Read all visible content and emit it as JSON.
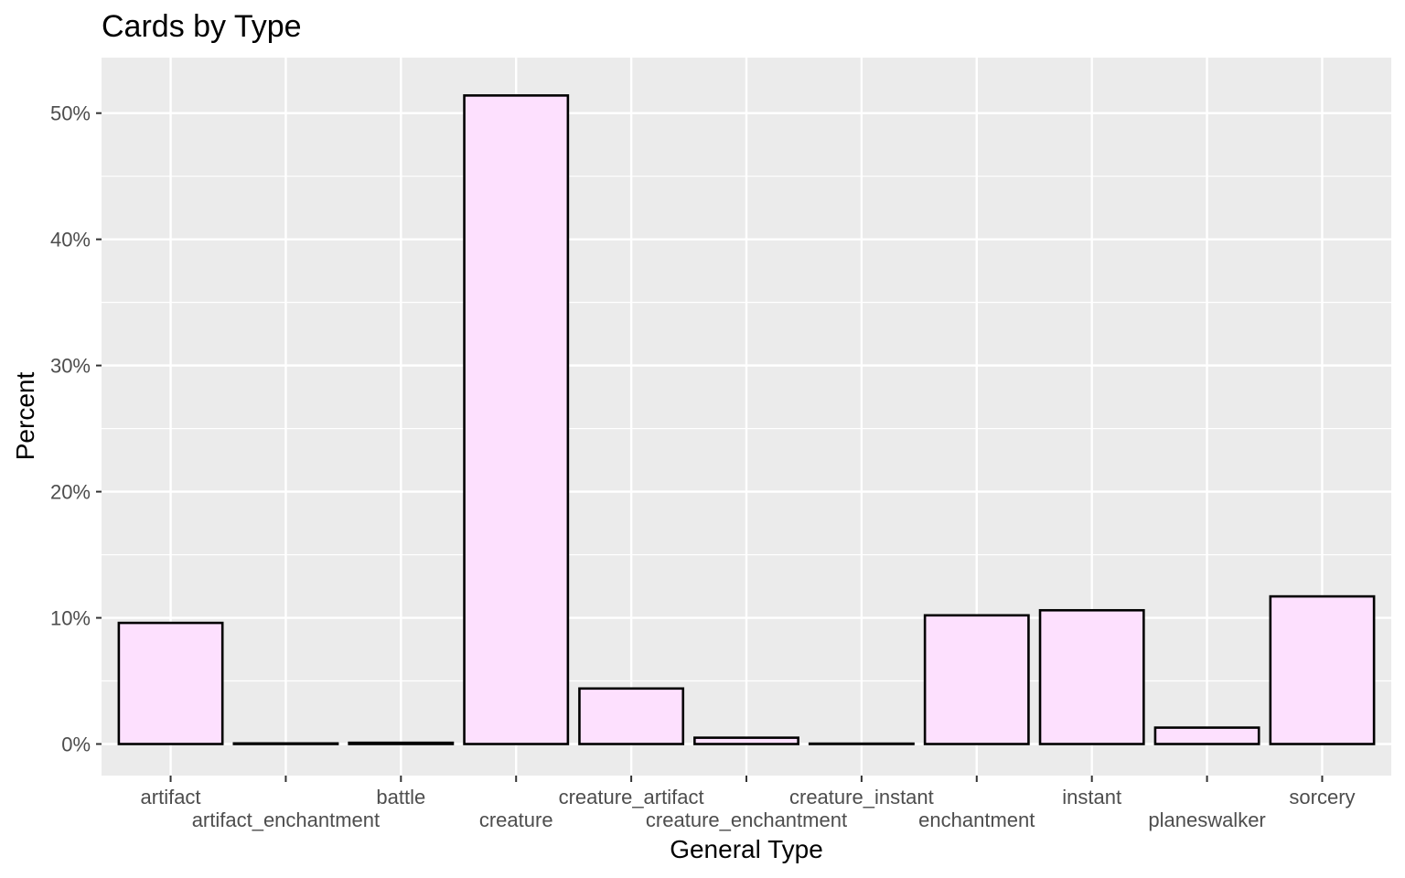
{
  "chart_data": {
    "type": "bar",
    "title": "Cards by Type",
    "xlabel": "General Type",
    "ylabel": "Percent",
    "categories": [
      "artifact",
      "artifact_enchantment",
      "battle",
      "creature",
      "creature_artifact",
      "creature_enchantment",
      "creature_instant",
      "enchantment",
      "instant",
      "planeswalker",
      "sorcery"
    ],
    "values": [
      9.6,
      0.05,
      0.1,
      51.4,
      4.4,
      0.5,
      0.03,
      10.2,
      10.6,
      1.3,
      11.7
    ],
    "ylim": [
      -2.5,
      54.4
    ],
    "yticks": [
      0,
      10,
      20,
      30,
      40,
      50
    ],
    "ytick_labels": [
      "0%",
      "10%",
      "20%",
      "30%",
      "40%",
      "50%"
    ],
    "grid": true,
    "colors": {
      "panel": "#ebebeb",
      "grid": "#ffffff",
      "bar_fill": "#fde0fe",
      "bar_stroke": "#000000",
      "tick": "#333333"
    }
  }
}
